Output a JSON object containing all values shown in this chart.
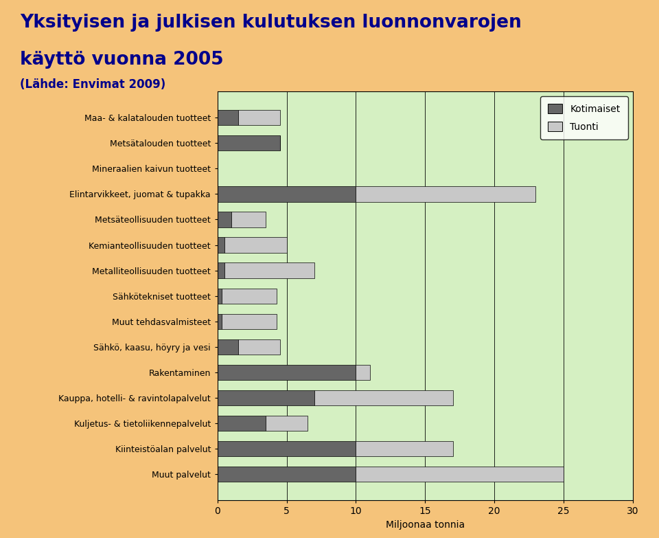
{
  "categories": [
    "Maa- & kalatalouden tuotteet",
    "Metsätalouden tuotteet",
    "Mineraalien kaivun tuotteet",
    "Elintarvikkeet, juomat & tupakka",
    "Metsäteollisuuden tuotteet",
    "Kemianteollisuuden tuotteet",
    "Metalliteollisuuden tuotteet",
    "Sähkötekniset tuotteet",
    "Muut tehdasvalmisteet",
    "Sähkö, kaasu, höyry ja vesi",
    "Rakentaminen",
    "Kauppa, hotelli- & ravintolapalvelut",
    "Kuljetus- & tietoliikennepalvelut",
    "Kiinteistöalan palvelut",
    "Muut palvelut"
  ],
  "kotimaiset": [
    1.5,
    4.5,
    0.0,
    10.0,
    1.0,
    0.5,
    0.5,
    0.3,
    0.3,
    1.5,
    10.0,
    7.0,
    3.5,
    10.0,
    10.0
  ],
  "tuonti": [
    3.0,
    0.0,
    0.0,
    13.0,
    2.5,
    4.5,
    6.5,
    4.0,
    4.0,
    3.0,
    1.0,
    10.0,
    3.0,
    7.0,
    15.0
  ],
  "color_kotimaiset": "#666666",
  "color_tuonti": "#c8c8c8",
  "title_line1": "Yksityisen ja julkisen kulutuksen luonnonvarojen",
  "title_line2": "käyttö vuonna 2005",
  "subtitle": "(Lähde: Envimat 2009)",
  "xlabel": "Miljoonaa tonnia",
  "xlim": [
    0,
    30
  ],
  "xticks": [
    0,
    5,
    10,
    15,
    20,
    25,
    30
  ],
  "background_outer": "#f5c37a",
  "background_inner": "#d5f0c2",
  "title_color": "#00008b",
  "subtitle_color": "#00008b",
  "legend_labels": [
    "Kotimaiset",
    "Tuonti"
  ]
}
